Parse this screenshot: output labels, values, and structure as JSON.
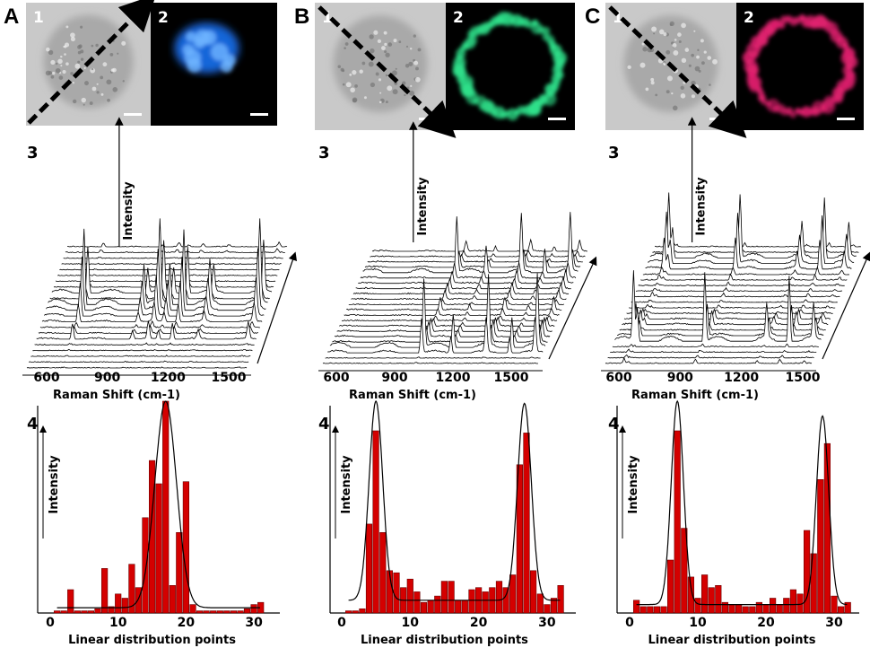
{
  "panels": [
    {
      "letter": "A",
      "image1_label": "1",
      "image2_label": "2",
      "fluor_color": "#1e78ff",
      "row3_label": "3",
      "row4_label": "4"
    },
    {
      "letter": "B",
      "image1_label": "1",
      "image2_label": "2",
      "fluor_color": "#2ee08a",
      "row3_label": "3",
      "row4_label": "4"
    },
    {
      "letter": "C",
      "image1_label": "1",
      "image2_label": "2",
      "fluor_color": "#e0206e",
      "row3_label": "3",
      "row4_label": "4"
    }
  ],
  "bar_color": "#d40000",
  "chart_data": [
    {
      "panel": "A",
      "type": "bar",
      "spectra": {
        "type": "line",
        "xlabel": "Raman Shift (cm-1)",
        "ylabel": "Intensity",
        "xticks": [
          "600",
          "900",
          "1200",
          "1500"
        ],
        "xlim": [
          520,
          1620
        ],
        "peaks_cm1": [
          700,
          1000,
          1080,
          1130,
          1200,
          1330,
          1580
        ]
      },
      "xlabel": "Linear distribution points",
      "ylabel": "Intensity",
      "xticks": [
        "0",
        "10",
        "20",
        "30"
      ],
      "xlim": [
        -2,
        34
      ],
      "ylim": [
        0,
        100
      ],
      "x": [
        1,
        2,
        3,
        4,
        5,
        6,
        7,
        8,
        9,
        10,
        11,
        12,
        13,
        14,
        15,
        16,
        17,
        18,
        19,
        20,
        21,
        22,
        23,
        24,
        25,
        26,
        27,
        28,
        29,
        30,
        31
      ],
      "values": [
        1,
        1,
        11,
        1,
        1,
        1,
        2,
        21,
        3,
        9,
        7,
        23,
        12,
        45,
        72,
        61,
        100,
        13,
        38,
        62,
        4,
        1,
        1,
        1,
        1,
        1,
        1,
        1,
        2,
        4,
        5
      ],
      "fit": {
        "peaks": [
          {
            "center": 17,
            "height": 100,
            "sigma": 1.6
          }
        ],
        "baseline": 2.5
      }
    },
    {
      "panel": "B",
      "type": "bar",
      "spectra": {
        "type": "line",
        "xlabel": "Raman Shift (cm-1)",
        "ylabel": "Intensity",
        "xticks": [
          "600",
          "900",
          "1200",
          "1500"
        ],
        "xlim": [
          520,
          1620
        ],
        "peaks_cm1": [
          1000,
          1150,
          1330,
          1450,
          1580
        ]
      },
      "xlabel": "Linear distribution points",
      "ylabel": "Intensity",
      "xticks": [
        "0",
        "10",
        "20",
        "30"
      ],
      "xlim": [
        -2,
        34
      ],
      "ylim": [
        0,
        100
      ],
      "x": [
        1,
        2,
        3,
        4,
        5,
        6,
        7,
        8,
        9,
        10,
        11,
        12,
        13,
        14,
        15,
        16,
        17,
        18,
        19,
        20,
        21,
        22,
        23,
        24,
        25,
        26,
        27,
        28,
        29,
        30,
        31,
        32
      ],
      "values": [
        1,
        1,
        2,
        42,
        86,
        38,
        20,
        19,
        12,
        16,
        10,
        5,
        6,
        8,
        15,
        15,
        6,
        6,
        11,
        12,
        10,
        12,
        15,
        12,
        18,
        70,
        85,
        20,
        9,
        4,
        7,
        13
      ],
      "fit": {
        "peaks": [
          {
            "center": 5,
            "height": 100,
            "sigma": 1.0
          },
          {
            "center": 26.7,
            "height": 99,
            "sigma": 1.0
          }
        ],
        "baseline": 6
      }
    },
    {
      "panel": "C",
      "type": "bar",
      "spectra": {
        "type": "line",
        "xlabel": "Raman Shift (cm-1)",
        "ylabel": "Intensity",
        "xticks": [
          "600",
          "900",
          "1200",
          "1500"
        ],
        "xlim": [
          520,
          1620
        ],
        "peaks_cm1": [
          620,
          640,
          1000,
          1330,
          1450,
          1580
        ]
      },
      "xlabel": "Linear distribution points",
      "ylabel": "Intensity",
      "xticks": [
        "0",
        "10",
        "20",
        "30"
      ],
      "xlim": [
        -2,
        34
      ],
      "ylim": [
        0,
        100
      ],
      "x": [
        1,
        2,
        3,
        4,
        5,
        6,
        7,
        8,
        9,
        10,
        11,
        12,
        13,
        14,
        15,
        16,
        17,
        18,
        19,
        20,
        21,
        22,
        23,
        24,
        25,
        26,
        27,
        28,
        29,
        30,
        31,
        32
      ],
      "values": [
        6,
        3,
        3,
        3,
        3,
        25,
        86,
        40,
        17,
        7,
        18,
        12,
        13,
        5,
        4,
        4,
        3,
        3,
        5,
        4,
        7,
        4,
        7,
        11,
        9,
        39,
        28,
        63,
        80,
        8,
        3,
        5
      ],
      "fit": {
        "peaks": [
          {
            "center": 7,
            "height": 100,
            "sigma": 0.9
          },
          {
            "center": 28.3,
            "height": 93,
            "sigma": 0.9
          }
        ],
        "baseline": 4
      }
    }
  ]
}
